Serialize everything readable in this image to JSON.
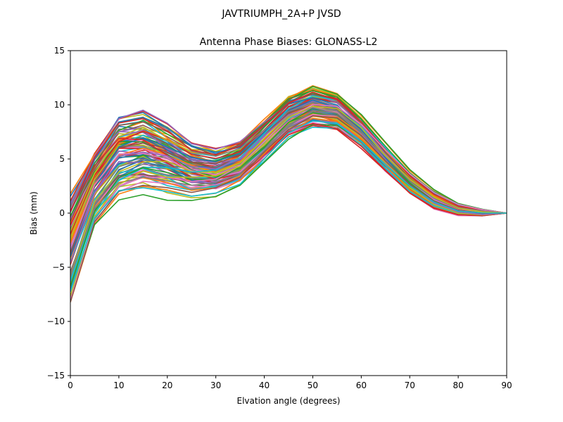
{
  "chart_data": {
    "type": "line",
    "suptitle": "JAVTRIUMPH_2A+P JVSD",
    "title": "Antenna Phase Biases: GLONASS-L2",
    "xlabel": "Elvation angle (degrees)",
    "ylabel": "Bias (mm)",
    "xlim": [
      0,
      90
    ],
    "ylim": [
      -15,
      15
    ],
    "xticks": [
      0,
      10,
      20,
      30,
      40,
      50,
      60,
      70,
      80,
      90
    ],
    "yticks": [
      -15,
      -10,
      -5,
      0,
      5,
      10,
      15
    ],
    "x": [
      0,
      5,
      10,
      15,
      20,
      25,
      30,
      35,
      40,
      45,
      50,
      55,
      60,
      65,
      70,
      75,
      80,
      85,
      90
    ],
    "series_count": 100,
    "envelope": {
      "upper": [
        1.8,
        6.2,
        9.9,
        10.6,
        9.5,
        7.8,
        7.0,
        7.8,
        9.8,
        11.9,
        12.7,
        11.9,
        9.6,
        6.8,
        4.2,
        2.3,
        1.0,
        0.4,
        0.0
      ],
      "lower": [
        -8.3,
        -1.3,
        0.9,
        1.2,
        0.7,
        0.5,
        0.7,
        1.6,
        3.6,
        5.8,
        6.9,
        6.8,
        5.4,
        3.4,
        1.5,
        0.2,
        -0.3,
        -0.3,
        0.0
      ]
    },
    "palette": [
      "#1f77b4",
      "#ff7f0e",
      "#2ca02c",
      "#d62728",
      "#9467bd",
      "#8c564b",
      "#e377c2",
      "#7f7f7f",
      "#bcbd22",
      "#17becf"
    ]
  }
}
